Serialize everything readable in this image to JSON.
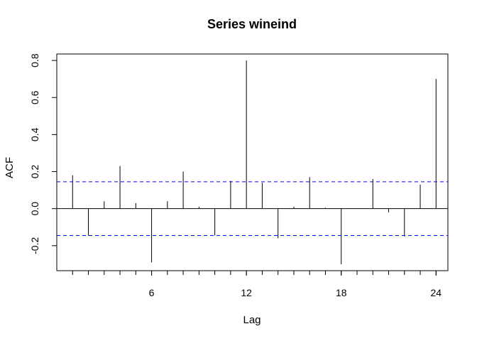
{
  "chart_data": {
    "type": "bar",
    "title": "Series  wineind",
    "xlabel": "Lag",
    "ylabel": "ACF",
    "xlim": [
      0.0,
      24.75
    ],
    "ylim": [
      -0.335,
      0.835
    ],
    "x_ticks": [
      6,
      12,
      18,
      24
    ],
    "y_ticks": [
      -0.2,
      0.0,
      0.2,
      0.4,
      0.6,
      0.8
    ],
    "y_tick_labels": [
      "-0.2",
      "0.0",
      "0.2",
      "0.4",
      "0.6",
      "0.8"
    ],
    "confidence_band": [
      -0.145,
      0.145
    ],
    "colors": {
      "bars": "#000000",
      "band": "#0000ff",
      "axis": "#000000"
    },
    "x": [
      1,
      2,
      3,
      4,
      5,
      6,
      7,
      8,
      9,
      10,
      11,
      12,
      13,
      14,
      15,
      16,
      17,
      18,
      19,
      20,
      21,
      22,
      23,
      24
    ],
    "values": [
      0.18,
      -0.145,
      0.04,
      0.23,
      0.03,
      -0.29,
      0.04,
      0.2,
      0.01,
      -0.145,
      0.15,
      0.8,
      0.14,
      -0.16,
      0.01,
      0.17,
      0.005,
      -0.3,
      0.0,
      0.16,
      -0.02,
      -0.15,
      0.13,
      0.7
    ],
    "grid": false,
    "legend": "none"
  }
}
